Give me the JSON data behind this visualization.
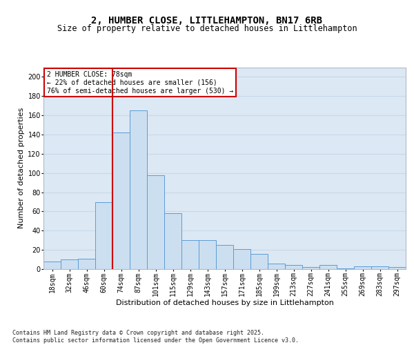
{
  "title_line1": "2, HUMBER CLOSE, LITTLEHAMPTON, BN17 6RB",
  "title_line2": "Size of property relative to detached houses in Littlehampton",
  "xlabel": "Distribution of detached houses by size in Littlehampton",
  "ylabel": "Number of detached properties",
  "bar_labels": [
    "18sqm",
    "32sqm",
    "46sqm",
    "60sqm",
    "74sqm",
    "87sqm",
    "101sqm",
    "115sqm",
    "129sqm",
    "143sqm",
    "157sqm",
    "171sqm",
    "185sqm",
    "199sqm",
    "213sqm",
    "227sqm",
    "241sqm",
    "255sqm",
    "269sqm",
    "283sqm",
    "297sqm"
  ],
  "bar_values": [
    8,
    10,
    11,
    70,
    142,
    165,
    98,
    58,
    30,
    30,
    25,
    21,
    16,
    6,
    4,
    2,
    4,
    1,
    3,
    3,
    2
  ],
  "bar_color": "#ccdff0",
  "bar_edge_color": "#5b9bd5",
  "grid_color": "#c8d8e8",
  "bg_color": "#dce8f4",
  "vline_color": "#cc0000",
  "annotation_text": "2 HUMBER CLOSE: 78sqm\n← 22% of detached houses are smaller (156)\n76% of semi-detached houses are larger (530) →",
  "annotation_box_edgecolor": "#cc0000",
  "ylim": [
    0,
    210
  ],
  "yticks": [
    0,
    20,
    40,
    60,
    80,
    100,
    120,
    140,
    160,
    180,
    200
  ],
  "footnote": "Contains HM Land Registry data © Crown copyright and database right 2025.\nContains public sector information licensed under the Open Government Licence v3.0.",
  "title_fontsize": 10,
  "subtitle_fontsize": 8.5,
  "axis_label_fontsize": 8,
  "tick_fontsize": 7,
  "annot_fontsize": 7
}
